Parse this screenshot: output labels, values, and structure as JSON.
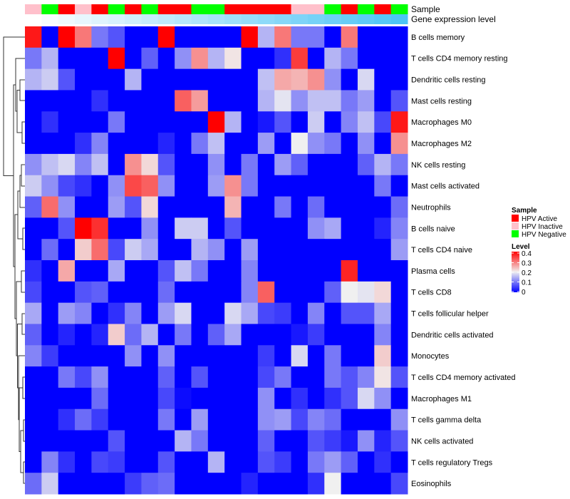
{
  "chart_data": {
    "type": "heatmap",
    "annotation_labels": {
      "sample": "Sample",
      "gene": "Gene expression level"
    },
    "sample_groups": [
      "HPV Inactive",
      "HPV Negative",
      "HPV Active",
      "HPV Inactive",
      "HPV Active",
      "HPV Negative",
      "HPV Active",
      "HPV Negative",
      "HPV Active",
      "HPV Active",
      "HPV Negative",
      "HPV Negative",
      "HPV Active",
      "HPV Active",
      "HPV Active",
      "HPV Active",
      "HPV Inactive",
      "HPV Inactive",
      "HPV Negative",
      "HPV Active",
      "HPV Negative",
      "HPV Active",
      "HPV Negative"
    ],
    "gene_expression_level": [
      0,
      0.045,
      0.09,
      0.135,
      0.18,
      0.225,
      0.27,
      0.315,
      0.36,
      0.405,
      0.45,
      0.5,
      0.545,
      0.59,
      0.635,
      0.68,
      0.725,
      0.77,
      0.815,
      0.86,
      0.905,
      0.95,
      1.0
    ],
    "rows": [
      "B cells memory",
      "T cells CD4 memory resting",
      "Dendritic cells resting",
      "Mast cells resting",
      "Macrophages M0",
      "Macrophages M2",
      "NK cells resting",
      "Mast cells activated",
      "Neutrophils",
      "B cells naive",
      "T cells CD4 naive",
      "Plasma cells",
      "T cells CD8",
      "T cells follicular helper",
      "Dendritic cells activated",
      "Monocytes",
      "T cells CD4 memory activated",
      "Macrophages M1",
      "T cells gamma delta",
      "NK cells activated",
      "T cells regulatory  Tregs",
      "Eosinophils"
    ],
    "values": [
      [
        0.38,
        0,
        0.4,
        0.3,
        0.1,
        0.07,
        0,
        0,
        0.4,
        0,
        0,
        0,
        0,
        0.4,
        0.15,
        0.3,
        0.1,
        0.1,
        0,
        0.3,
        0,
        0,
        0
      ],
      [
        0.1,
        0.15,
        0,
        0,
        0,
        0.4,
        0,
        0.08,
        0,
        0.12,
        0.28,
        0.15,
        0.21,
        0,
        0,
        0.04,
        0.35,
        0,
        0.15,
        0.1,
        0,
        0,
        0
      ],
      [
        0.15,
        0.17,
        0.07,
        0,
        0,
        0,
        0.15,
        0,
        0,
        0,
        0,
        0,
        0,
        0,
        0.16,
        0.26,
        0.25,
        0.28,
        0.12,
        0,
        0.18,
        0,
        0
      ],
      [
        0,
        0,
        0,
        0,
        0.04,
        0,
        0,
        0,
        0,
        0.32,
        0.27,
        0,
        0,
        0,
        0.15,
        0.19,
        0.12,
        0.16,
        0.16,
        0.1,
        0.13,
        0,
        0.07
      ],
      [
        0,
        0.04,
        0,
        0,
        0,
        0.1,
        0,
        0,
        0,
        0,
        0,
        0.4,
        0.15,
        0,
        0.02,
        0.07,
        0,
        0.17,
        0,
        0.11,
        0.16,
        0.06,
        0.38
      ],
      [
        0,
        0,
        0,
        0.04,
        0.11,
        0,
        0,
        0,
        0.03,
        0,
        0.1,
        0.16,
        0,
        0,
        0.13,
        0,
        0.2,
        0.12,
        0.1,
        0,
        0.12,
        0,
        0.28
      ],
      [
        0.12,
        0.16,
        0.18,
        0.11,
        0.16,
        0,
        0.28,
        0.22,
        0.07,
        0,
        0,
        0.12,
        0,
        0.1,
        0,
        0.13,
        0.08,
        0,
        0,
        0,
        0.08,
        0.15,
        0.1
      ],
      [
        0.17,
        0.12,
        0.06,
        0.04,
        0,
        0.12,
        0.34,
        0.32,
        0.12,
        0,
        0,
        0.13,
        0.28,
        0.1,
        0,
        0,
        0,
        0,
        0,
        0,
        0,
        0.1,
        0
      ],
      [
        0.08,
        0.31,
        0.12,
        0,
        0,
        0.13,
        0.07,
        0.22,
        0,
        0,
        0,
        0,
        0.25,
        0,
        0,
        0.1,
        0,
        0.09,
        0,
        0,
        0,
        0,
        0.09
      ],
      [
        0,
        0,
        0.07,
        0.4,
        0.36,
        0,
        0,
        0.12,
        0,
        0.17,
        0.17,
        0,
        0.07,
        0,
        0,
        0,
        0,
        0.12,
        0.14,
        0,
        0,
        0.03,
        0.11
      ],
      [
        0,
        0.09,
        0,
        0.23,
        0.31,
        0.06,
        0.17,
        0.14,
        0,
        0,
        0.15,
        0.12,
        0,
        0.13,
        0,
        0,
        0,
        0,
        0,
        0,
        0,
        0,
        0.13
      ],
      [
        0.04,
        0,
        0.26,
        0,
        0,
        0.14,
        0,
        0,
        0.07,
        0.16,
        0.1,
        0,
        0,
        0.11,
        0,
        0,
        0,
        0,
        0,
        0.37,
        0,
        0,
        0
      ],
      [
        0.06,
        0,
        0,
        0.07,
        0.08,
        0,
        0,
        0,
        0.09,
        0,
        0,
        0,
        0,
        0.11,
        0.32,
        0,
        0,
        0,
        0.08,
        0.2,
        0.19,
        0.22,
        0
      ],
      [
        0.14,
        0,
        0.13,
        0.11,
        0,
        0.04,
        0.11,
        0,
        0.13,
        0.18,
        0,
        0,
        0.18,
        0.14,
        0.06,
        0.05,
        0,
        0.11,
        0,
        0.07,
        0.07,
        0.14,
        0
      ],
      [
        0.08,
        0,
        0.03,
        0,
        0.03,
        0.23,
        0.09,
        0.15,
        0,
        0.1,
        0,
        0.08,
        0.14,
        0,
        0,
        0,
        0.02,
        0.05,
        0,
        0,
        0,
        0.11,
        0
      ],
      [
        0.11,
        0.05,
        0,
        0,
        0,
        0,
        0.12,
        0,
        0.12,
        0,
        0,
        0,
        0,
        0,
        0.05,
        0,
        0.18,
        0,
        0.1,
        0,
        0,
        0.23,
        0
      ],
      [
        0,
        0,
        0.1,
        0.06,
        0.12,
        0,
        0,
        0,
        0.08,
        0,
        0.07,
        0,
        0,
        0,
        0.06,
        0.1,
        0,
        0,
        0.1,
        0.07,
        0.11,
        0.21,
        0.07
      ],
      [
        0,
        0,
        0,
        0,
        0.09,
        0,
        0,
        0,
        0.06,
        0.01,
        0,
        0,
        0,
        0,
        0.12,
        0,
        0.04,
        0,
        0.04,
        0.07,
        0.18,
        0.12,
        0
      ],
      [
        0,
        0,
        0.04,
        0.09,
        0.05,
        0,
        0,
        0,
        0.1,
        0,
        0.13,
        0,
        0,
        0,
        0.12,
        0.13,
        0.06,
        0.11,
        0.09,
        0,
        0,
        0,
        0.12
      ],
      [
        0,
        0,
        0,
        0,
        0,
        0.07,
        0,
        0,
        0,
        0.15,
        0.1,
        0,
        0,
        0,
        0.08,
        0,
        0,
        0.07,
        0.05,
        0.02,
        0.12,
        0.03,
        0.07
      ],
      [
        0,
        0.11,
        0.04,
        0,
        0.06,
        0.05,
        0,
        0,
        0.07,
        0,
        0,
        0.15,
        0,
        0,
        0.07,
        0.05,
        0,
        0.1,
        0.13,
        0.08,
        0,
        0.04,
        0
      ],
      [
        0.09,
        0.17,
        0,
        0,
        0,
        0,
        0.05,
        0.08,
        0.09,
        0,
        0,
        0,
        0,
        0.03,
        0,
        0,
        0,
        0.04,
        0.2,
        0,
        0,
        0,
        0.06
      ]
    ],
    "color_range": [
      0,
      0.4
    ],
    "colors": {
      "low": "#0000ff",
      "mid": "#f0f0f0",
      "high": "#ff0000",
      "gene_low": "#ffffff",
      "gene_high": "#4dc4f5"
    },
    "legend": {
      "sample_title": "Sample",
      "sample_items": [
        {
          "label": "HPV Active",
          "color": "#ff0000"
        },
        {
          "label": "HPV Inactive",
          "color": "#ffc0cb"
        },
        {
          "label": "HPV Negative",
          "color": "#00ff00"
        }
      ],
      "level_title": "Level",
      "level_ticks": [
        "0.4",
        "0.3",
        "0.2",
        "0.1",
        "0"
      ],
      "position": "right"
    }
  }
}
